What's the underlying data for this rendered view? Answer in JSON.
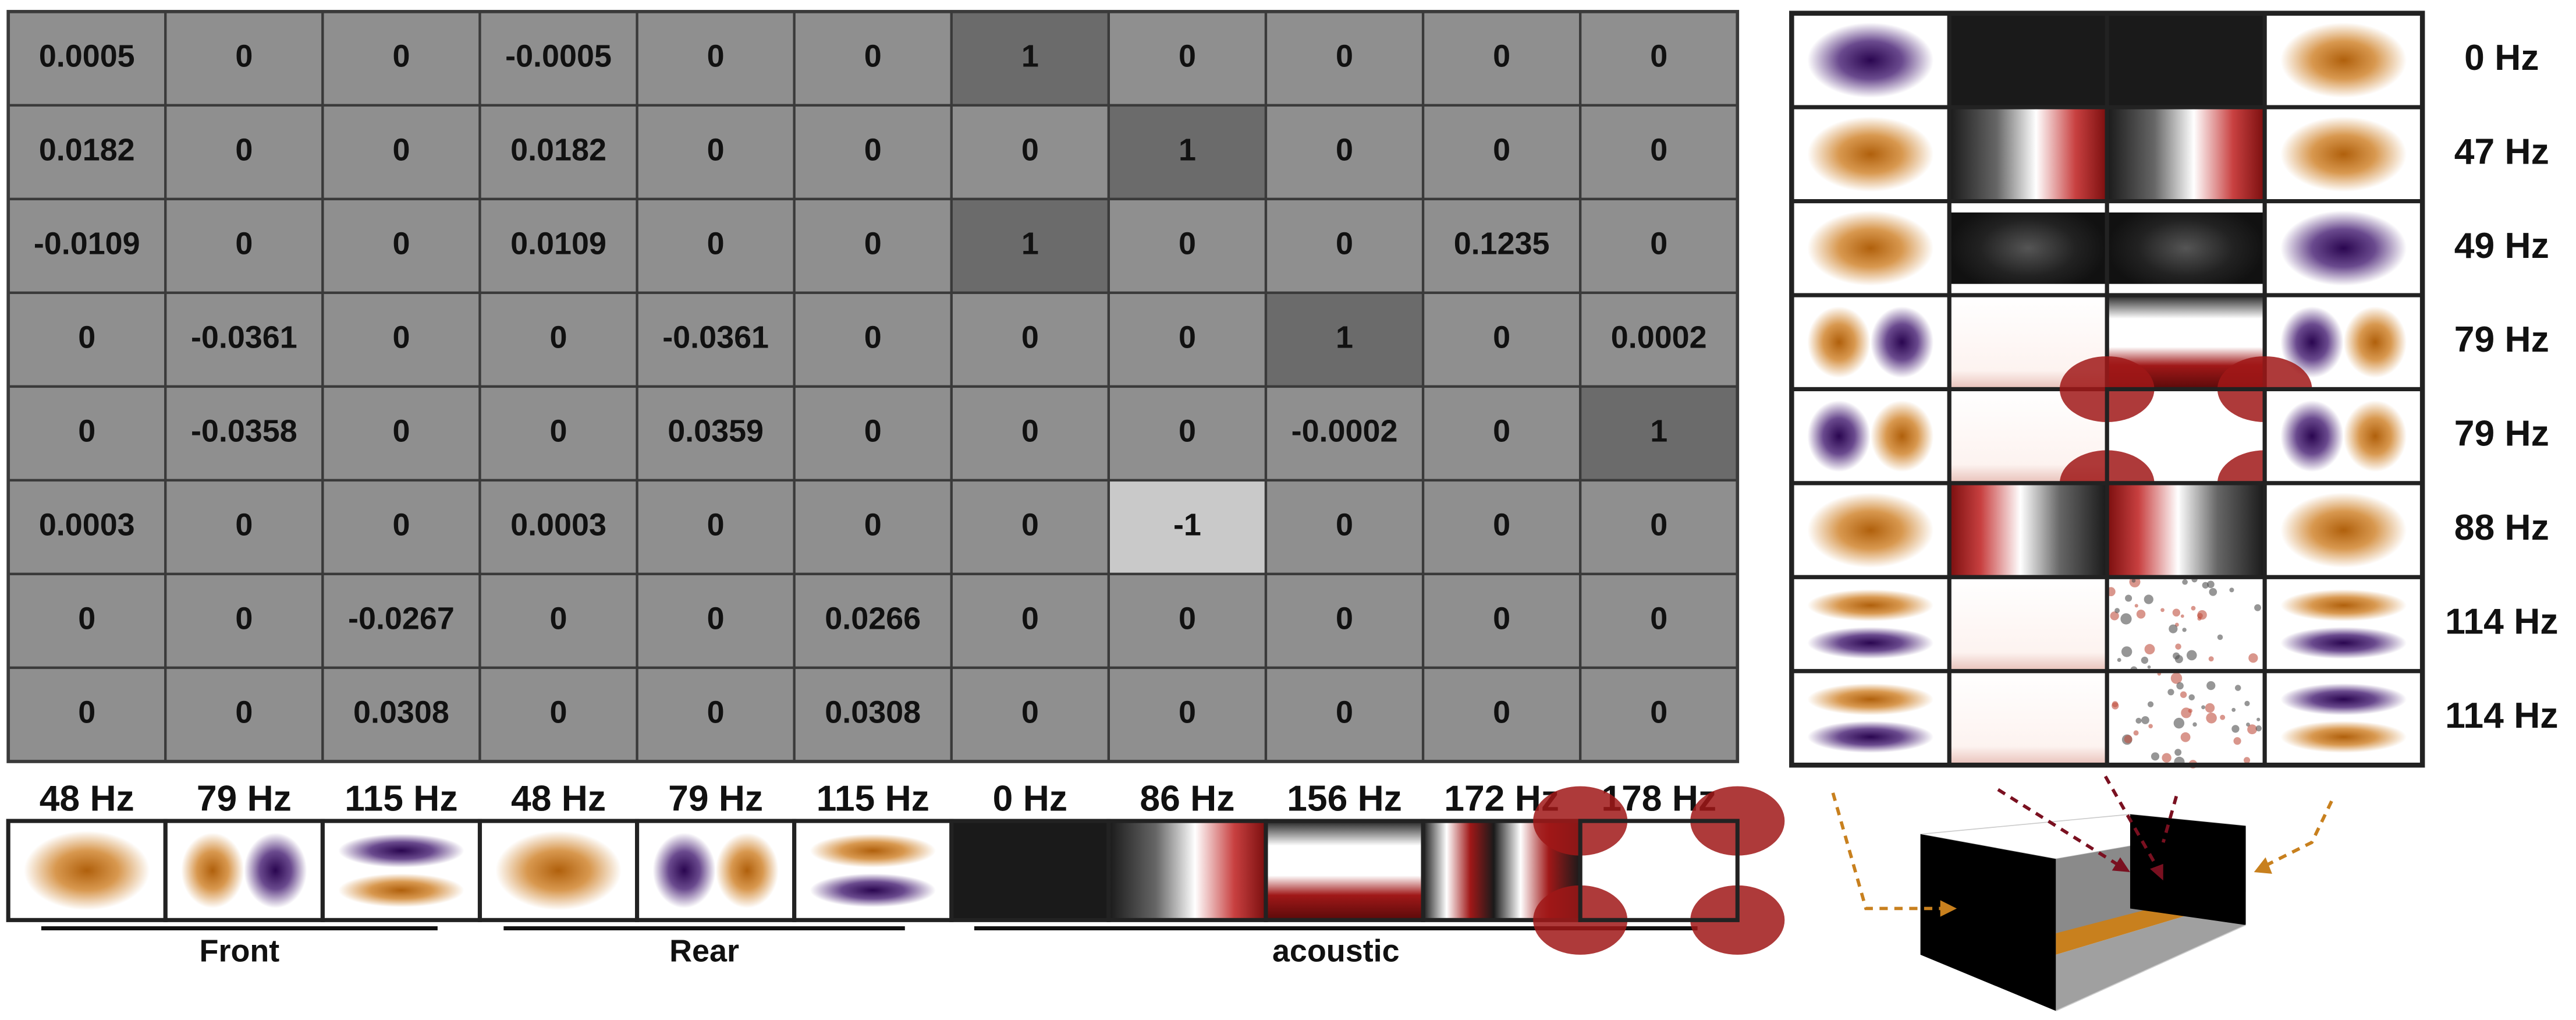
{
  "matrix": {
    "rows": [
      [
        0.0005,
        0,
        0,
        -0.0005,
        0,
        0,
        1,
        0,
        0,
        0,
        0
      ],
      [
        0.0182,
        0,
        0,
        0.0182,
        0,
        0,
        0,
        1,
        0,
        0,
        0
      ],
      [
        -0.0109,
        0,
        0,
        0.0109,
        0,
        0,
        1,
        0,
        0,
        0.1235,
        0
      ],
      [
        0,
        -0.0361,
        0,
        0,
        -0.0361,
        0,
        0,
        0,
        1,
        0,
        0.0002
      ],
      [
        0,
        -0.0358,
        0,
        0,
        0.0359,
        0,
        0,
        0,
        -0.0002,
        0,
        1
      ],
      [
        0.0003,
        0,
        0,
        0.0003,
        0,
        0,
        0,
        -1,
        0,
        0,
        0
      ],
      [
        0,
        0,
        -0.0267,
        0,
        0,
        0.0266,
        0,
        0,
        0,
        0,
        0
      ],
      [
        0,
        0,
        0.0308,
        0,
        0,
        0.0308,
        0,
        0,
        0,
        0,
        0
      ]
    ]
  },
  "columns": {
    "labels": [
      "48 Hz",
      "79 Hz",
      "115 Hz",
      "48 Hz",
      "79 Hz",
      "115 Hz",
      "0 Hz",
      "86 Hz",
      "156 Hz",
      "172 Hz",
      "178 Hz"
    ]
  },
  "groups": [
    {
      "label": "Front"
    },
    {
      "label": "Rear"
    },
    {
      "label": "acoustic"
    }
  ],
  "modes": {
    "labels": [
      "0 Hz",
      "47 Hz",
      "49 Hz",
      "79 Hz",
      "79 Hz",
      "88 Hz",
      "114 Hz",
      "114 Hz"
    ]
  }
}
